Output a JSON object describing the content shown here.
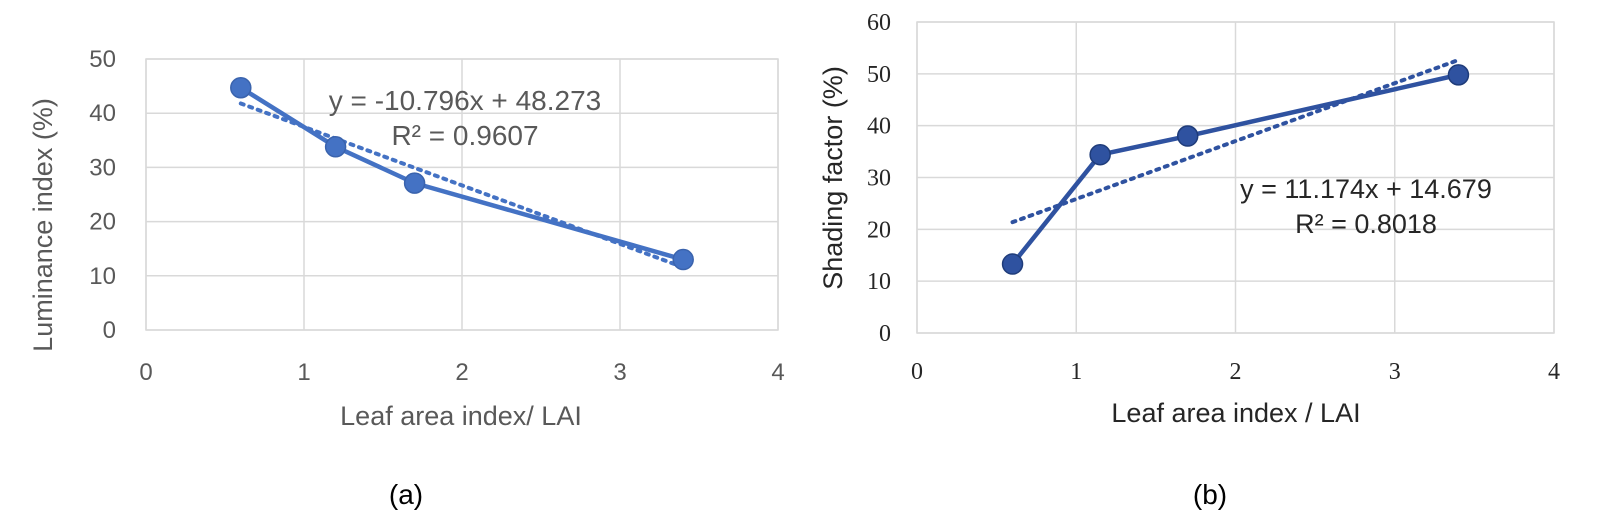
{
  "chart_data": [
    {
      "type": "line",
      "caption": "(a)",
      "xlabel": "Leaf area index/ LAI",
      "ylabel": "Luminance index (%)",
      "xlim": [
        0,
        4
      ],
      "ylim": [
        0,
        50
      ],
      "xticks": [
        0,
        1,
        2,
        3,
        4
      ],
      "yticks": [
        0,
        10,
        20,
        30,
        40,
        50
      ],
      "grid": true,
      "series": [
        {
          "x": [
            0.6,
            1.2,
            1.7,
            3.4
          ],
          "values": [
            44.7,
            33.8,
            27.1,
            13.0
          ]
        }
      ],
      "trendline": {
        "slope": -10.796,
        "intercept": 48.273,
        "x": [
          0.6,
          3.4
        ],
        "style": "dotted"
      },
      "equation": "y = -10.796x + 48.273",
      "r2": "R² = 0.9607",
      "color": "#4472C4"
    },
    {
      "type": "line",
      "caption": "(b)",
      "xlabel": "Leaf area index / LAI",
      "ylabel": "Shading factor (%)",
      "xlim": [
        0,
        4
      ],
      "ylim": [
        0,
        60
      ],
      "xticks": [
        0,
        1,
        2,
        3,
        4
      ],
      "yticks": [
        0,
        10,
        20,
        30,
        40,
        50,
        60
      ],
      "grid": true,
      "series": [
        {
          "x": [
            0.6,
            1.15,
            1.7,
            3.4
          ],
          "values": [
            13.3,
            34.4,
            38.0,
            49.8
          ]
        }
      ],
      "trendline": {
        "slope": 11.174,
        "intercept": 14.679,
        "x": [
          0.6,
          3.4
        ],
        "style": "dotted"
      },
      "equation": "y = 11.174x + 14.679",
      "r2": "R² = 0.8018",
      "color": "#2F52A0"
    }
  ]
}
